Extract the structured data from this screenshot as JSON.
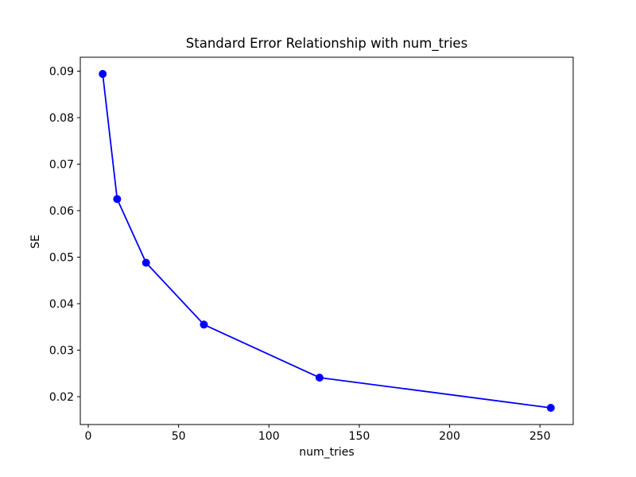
{
  "chart_data": {
    "type": "line",
    "title": "Standard Error Relationship with num_tries",
    "xlabel": "num_tries",
    "ylabel": "SE",
    "series": [
      {
        "name": "SE",
        "x": [
          8,
          16,
          32,
          64,
          128,
          256
        ],
        "y": [
          0.0894,
          0.0625,
          0.0488,
          0.0355,
          0.0241,
          0.0176
        ],
        "color": "#0000ff",
        "marker": "circle"
      }
    ],
    "xlim": [
      -4.4,
      268.4
    ],
    "ylim": [
      0.01401,
      0.09299
    ],
    "xticks": [
      0,
      50,
      100,
      150,
      200,
      250
    ],
    "yticks": [
      0.02,
      0.03,
      0.04,
      0.05,
      0.06,
      0.07,
      0.08,
      0.09
    ],
    "ytick_decimals": 2,
    "grid": false,
    "legend_position": "none",
    "background_color": "#ffffff",
    "spine_color": "#000000",
    "text_color": "#000000"
  }
}
